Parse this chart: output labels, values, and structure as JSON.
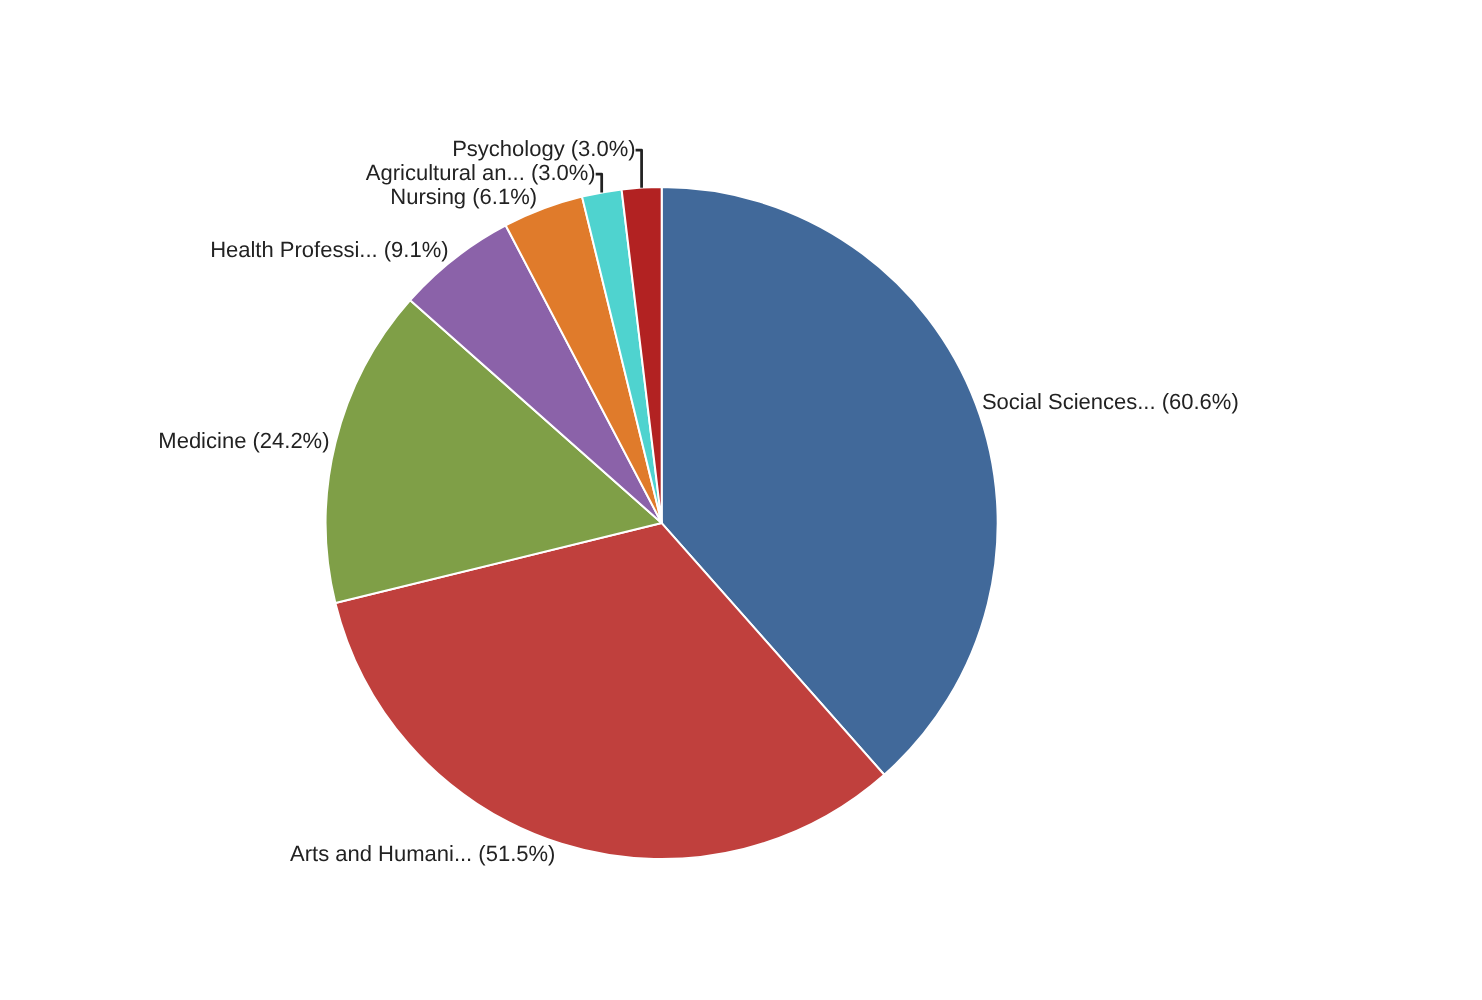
{
  "chart_data": {
    "type": "pie",
    "categories": [
      "Social Sciences...",
      "Arts and Humani...",
      "Medicine",
      "Health Professi...",
      "Nursing",
      "Agricultural an...",
      "Psychology"
    ],
    "values": [
      60.6,
      51.5,
      24.2,
      9.1,
      6.1,
      3.0,
      3.0
    ],
    "value_labels": [
      "(60.6%)",
      "(51.5%)",
      "(24.2%)",
      "(9.1%)",
      "(6.1%)",
      "(3.0%)",
      "(3.0%)"
    ],
    "colors": [
      "#41699a",
      "#c0403d",
      "#7f9f47",
      "#8b62a9",
      "#e07b2b",
      "#4fd3cf",
      "#b22222"
    ],
    "legend": false
  }
}
